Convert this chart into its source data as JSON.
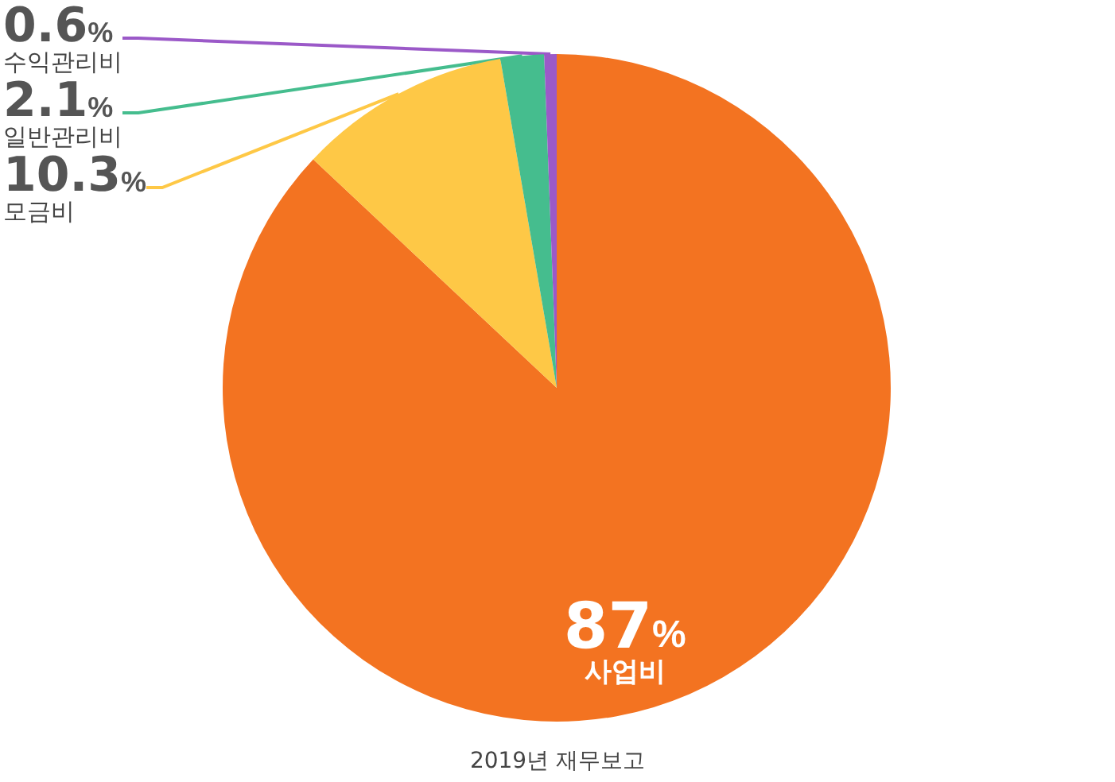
{
  "chart_data": {
    "type": "pie",
    "categories": [
      "사업비",
      "모금비",
      "일반관리비",
      "수익관리비"
    ],
    "values": [
      87,
      10.3,
      2.1,
      0.6
    ],
    "colors": [
      "#f37321",
      "#fec846",
      "#45bd8e",
      "#9b59c8"
    ],
    "value_labels": [
      "87%",
      "10.3%",
      "2.1%",
      "0.6%"
    ],
    "legend": false,
    "annotations": [
      "2019년 재무보고"
    ]
  }
}
